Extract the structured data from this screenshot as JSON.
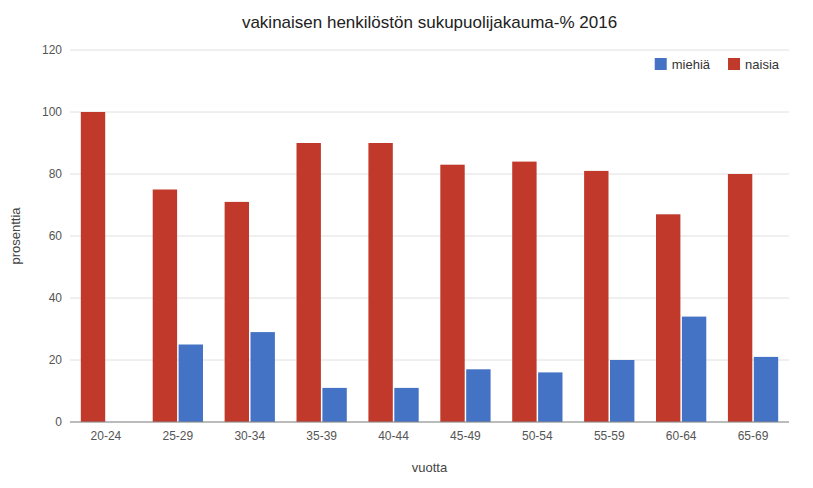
{
  "chart_data": {
    "type": "bar",
    "title": "vakinaisen henkilöstön sukupuolijakauma-% 2016",
    "xlabel": "vuotta",
    "ylabel": "prosenttia",
    "categories": [
      "20-24",
      "25-29",
      "30-34",
      "35-39",
      "40-44",
      "45-49",
      "50-54",
      "55-59",
      "60-64",
      "65-69"
    ],
    "series": [
      {
        "name": "miehiä",
        "color": "#4472C4",
        "values": [
          0,
          25,
          29,
          11,
          11,
          17,
          16,
          20,
          34,
          21
        ]
      },
      {
        "name": "naisia",
        "color": "#C0392B",
        "values": [
          100,
          75,
          71,
          90,
          90,
          83,
          84,
          81,
          67,
          80
        ]
      }
    ],
    "ylim": [
      0,
      120
    ],
    "yticks": [
      0,
      20,
      40,
      60,
      80,
      100,
      120
    ],
    "grid": true,
    "legend": "upper right"
  }
}
